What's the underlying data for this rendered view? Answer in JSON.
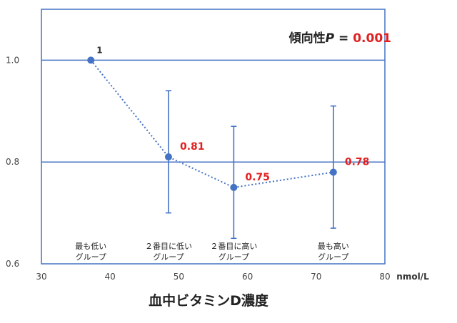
{
  "chart_data": {
    "type": "scatter",
    "xlabel": "血中ビタミンD濃度",
    "x_unit": "nmol/L",
    "xlim": [
      30,
      80
    ],
    "ylim": [
      0.6,
      1.1
    ],
    "x_ticks": [
      30,
      40,
      50,
      60,
      70,
      80
    ],
    "y_ticks": [
      0.6,
      0.8,
      1.0
    ],
    "y_tick_labels": [
      "0.6",
      "0.8",
      "1.0"
    ],
    "grid": "horizontal",
    "points": [
      {
        "category": [
          "最も低い",
          "グループ"
        ],
        "x": 37.2,
        "y": 1.0,
        "label": "1",
        "ci_low": null,
        "ci_high": null
      },
      {
        "category": [
          "２番目に低い",
          "グループ"
        ],
        "x": 48.5,
        "y": 0.81,
        "label": "0.81",
        "ci_low": 0.7,
        "ci_high": 0.94
      },
      {
        "category": [
          "２番目に高い",
          "グループ"
        ],
        "x": 58.0,
        "y": 0.75,
        "label": "0.75",
        "ci_low": 0.65,
        "ci_high": 0.87
      },
      {
        "category": [
          "最も高い",
          "グループ"
        ],
        "x": 72.5,
        "y": 0.78,
        "label": "0.78",
        "ci_low": 0.67,
        "ci_high": 0.91
      }
    ],
    "trend": {
      "label": "傾向性",
      "p_symbol": "P",
      "equals": " = ",
      "value": "0.001"
    },
    "colors": {
      "point": "#4472c4",
      "grid": "#4472c4",
      "label_highlight": "#e02020",
      "axis": "#4472c4"
    }
  }
}
